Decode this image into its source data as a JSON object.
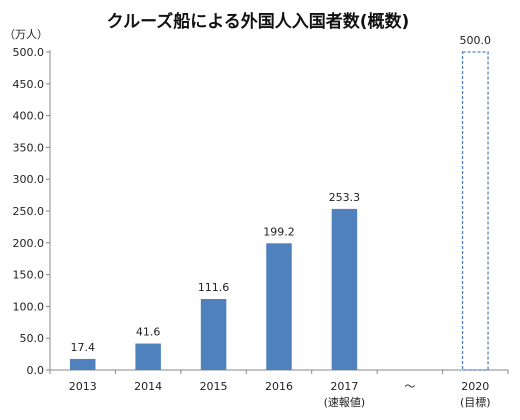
{
  "chart_data": {
    "type": "bar",
    "title": "クルーズ船による外国人入国者数(概数)",
    "unit_label": "（万人）",
    "categories": [
      "2013",
      "2014",
      "2015",
      "2016",
      "2017",
      "～",
      "2020"
    ],
    "category_sublabels": [
      "",
      "",
      "",
      "",
      "(速報値)",
      "",
      "(目標)"
    ],
    "values": [
      17.4,
      41.6,
      111.6,
      199.2,
      253.3,
      null,
      500.0
    ],
    "value_labels": [
      "17.4",
      "41.6",
      "111.6",
      "199.2",
      "253.3",
      "",
      "500.0"
    ],
    "bar_styles": [
      "solid",
      "solid",
      "solid",
      "solid",
      "solid",
      "none",
      "dashed"
    ],
    "yticks": [
      "0.0",
      "50.0",
      "100.0",
      "150.0",
      "200.0",
      "250.0",
      "300.0",
      "350.0",
      "400.0",
      "450.0",
      "500.0"
    ],
    "ylim": [
      0,
      500
    ],
    "grid": false,
    "legend": "none",
    "bar_color": "#4f81bd"
  }
}
